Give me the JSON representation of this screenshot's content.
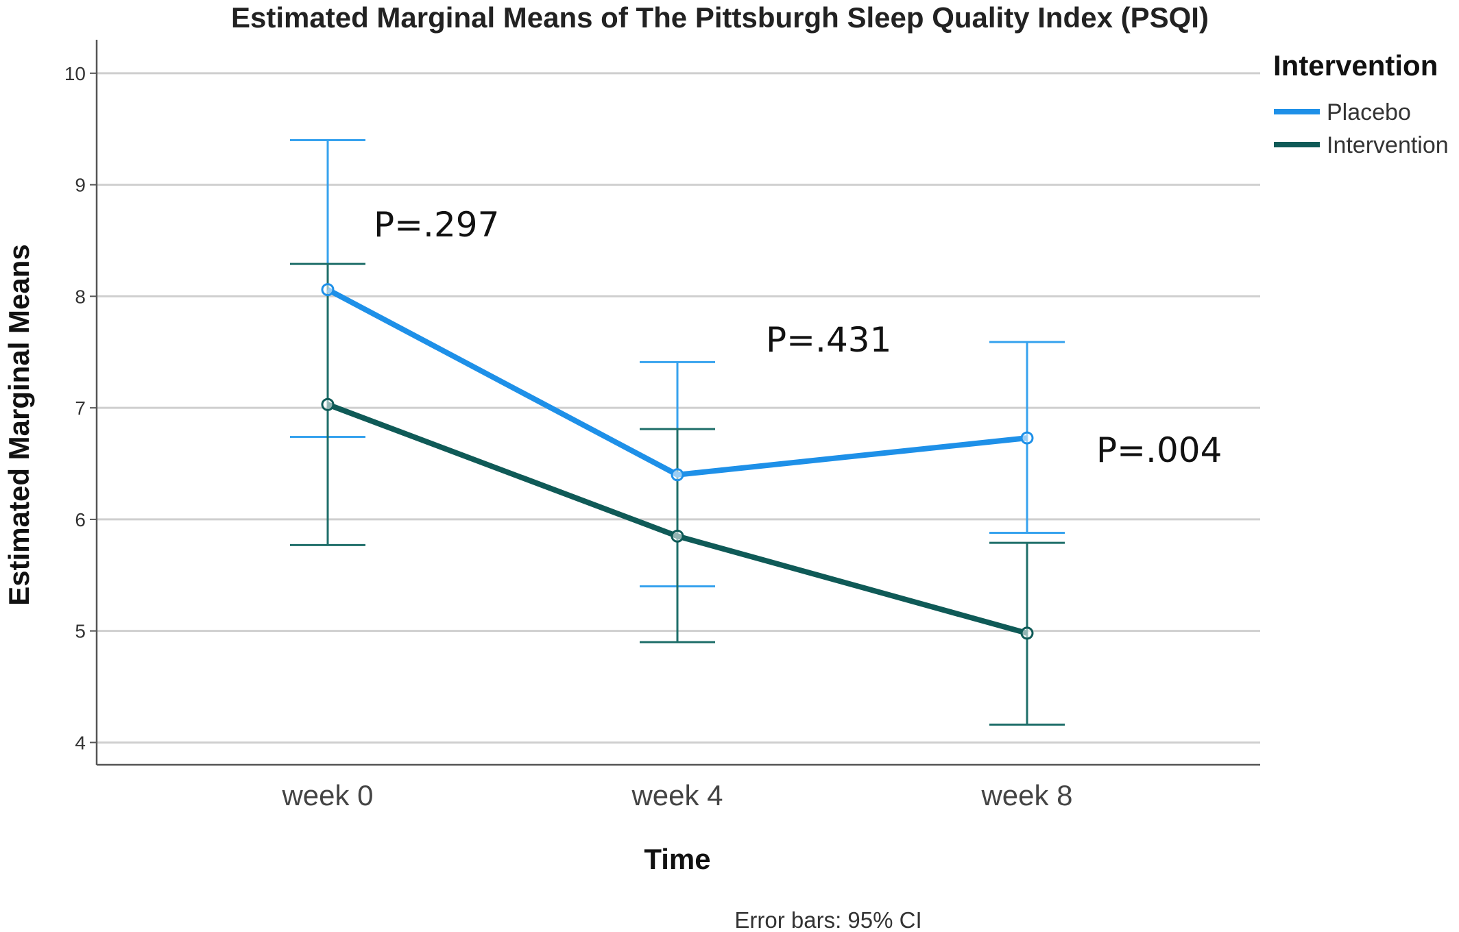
{
  "chart_data": {
    "type": "line",
    "title": "Estimated Marginal Means of The Pittsburgh Sleep Quality Index (PSQI)",
    "xlabel": "Time",
    "ylabel": "Estimated Marginal Means",
    "categories": [
      "week 0",
      "week 4",
      "week 8"
    ],
    "ylim": [
      3.8,
      10.3
    ],
    "yticks": [
      4,
      5,
      6,
      7,
      8,
      9,
      10
    ],
    "grid": true,
    "legend": {
      "title": "Intervention",
      "placement": "top-right"
    },
    "series": [
      {
        "name": "Placebo",
        "color": "#1e90e8",
        "errcolor": "#36a2ee",
        "values": [
          8.06,
          6.4,
          6.73
        ],
        "ci_low": [
          6.74,
          5.4,
          5.88
        ],
        "ci_high": [
          9.4,
          7.41,
          7.59
        ]
      },
      {
        "name": "Intervention",
        "color": "#0f5a57",
        "errcolor": "#1e6e69",
        "values": [
          7.03,
          5.85,
          4.98
        ],
        "ci_low": [
          5.77,
          4.9,
          4.16
        ],
        "ci_high": [
          8.29,
          6.81,
          5.79
        ]
      }
    ],
    "annotations": [
      {
        "text": "P=.297",
        "x": "week 0",
        "y": 9.4
      },
      {
        "text": "P=.431",
        "x": "week 4",
        "y": 8.4
      },
      {
        "text": "P=.004",
        "x": "week 8",
        "y": 7.4
      }
    ],
    "footnote": "Error bars: 95% CI"
  }
}
